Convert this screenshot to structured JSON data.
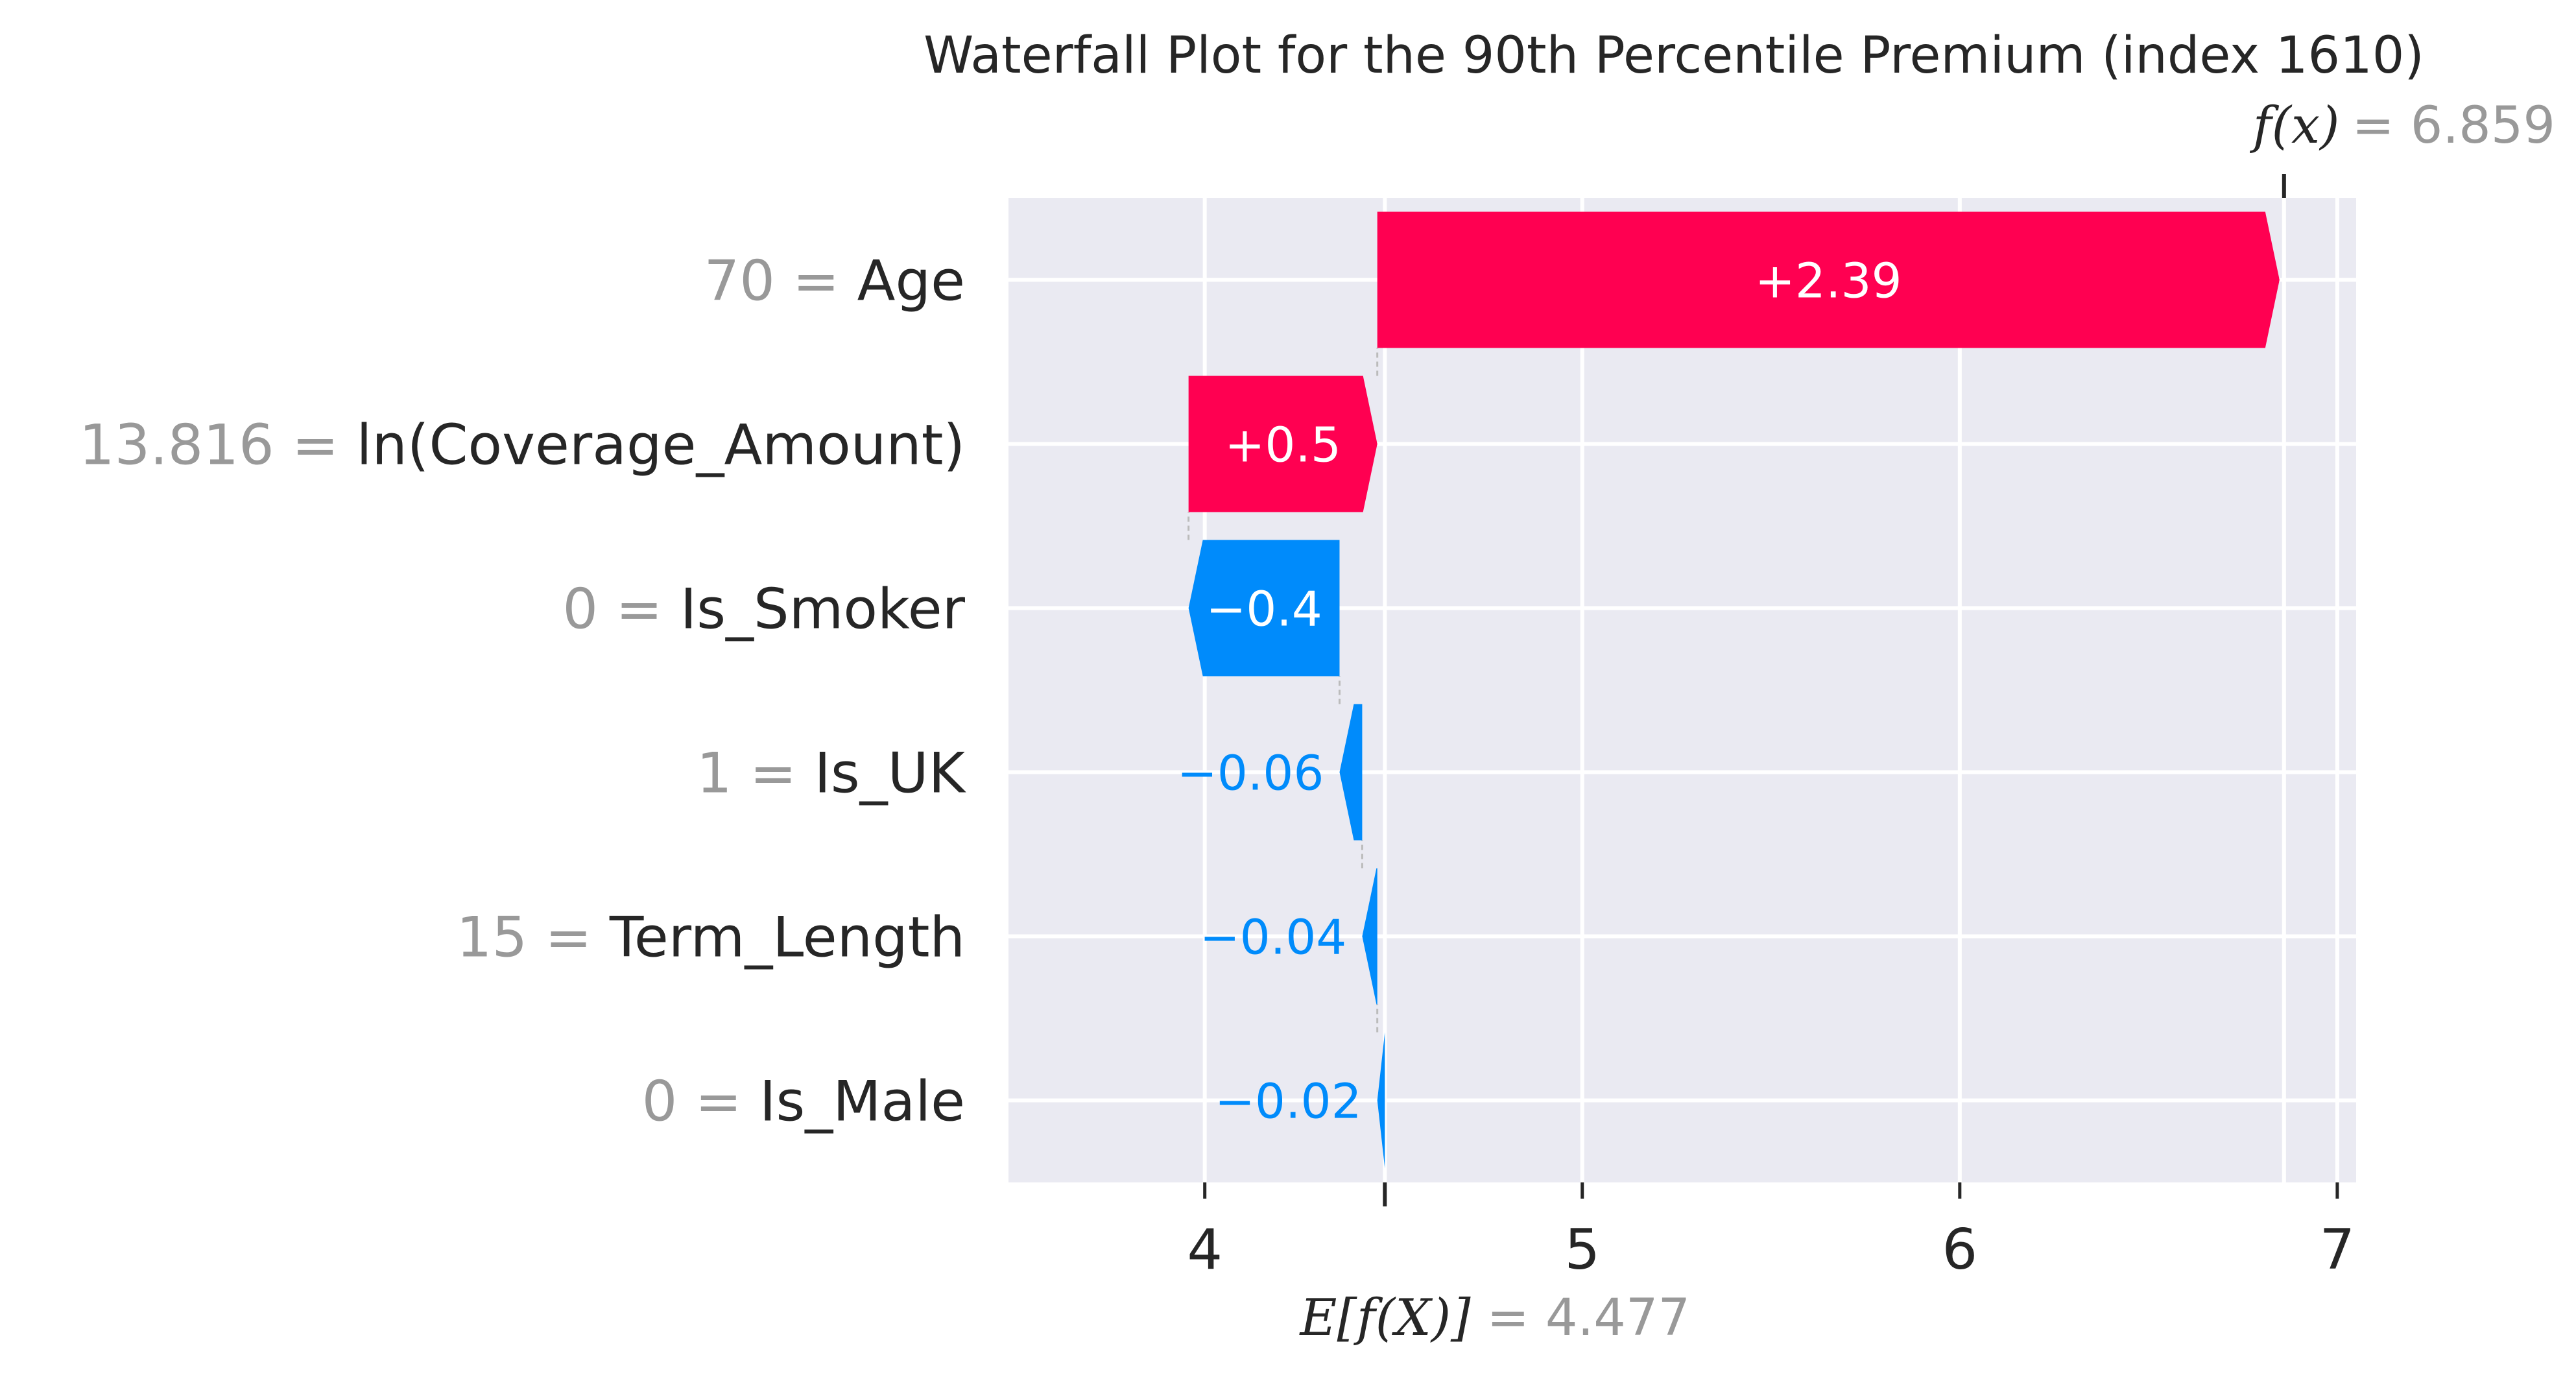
{
  "chart_data": {
    "type": "waterfall",
    "title": "Waterfall Plot for the 90th Percentile Premium (index 1610)",
    "base_value": 4.477,
    "base_label_math": "E[f(X)]",
    "base_label_value": "= 4.477",
    "output_value": 6.859,
    "output_label_math": "f(x)",
    "output_label_value": "= 6.859",
    "xlim": [
      3.48,
      7.05
    ],
    "xticks": [
      4,
      5,
      6,
      7
    ],
    "grid": true,
    "colors": {
      "positive": "#ff0051",
      "negative": "#008bfb",
      "background": "#eaeaf2",
      "grid": "#ffffff",
      "connector": "#bbbbbb"
    },
    "features": [
      {
        "value": "70",
        "name": "Age",
        "contribution": 2.39,
        "label": "+2.39"
      },
      {
        "value": "13.816",
        "name": "ln(Coverage_Amount)",
        "contribution": 0.5,
        "label": "+0.5"
      },
      {
        "value": "0",
        "name": "Is_Smoker",
        "contribution": -0.4,
        "label": "−0.4"
      },
      {
        "value": "1",
        "name": "Is_UK",
        "contribution": -0.06,
        "label": "−0.06"
      },
      {
        "value": "15",
        "name": "Term_Length",
        "contribution": -0.04,
        "label": "−0.04"
      },
      {
        "value": "0",
        "name": "Is_Male",
        "contribution": -0.02,
        "label": "−0.02"
      }
    ]
  }
}
